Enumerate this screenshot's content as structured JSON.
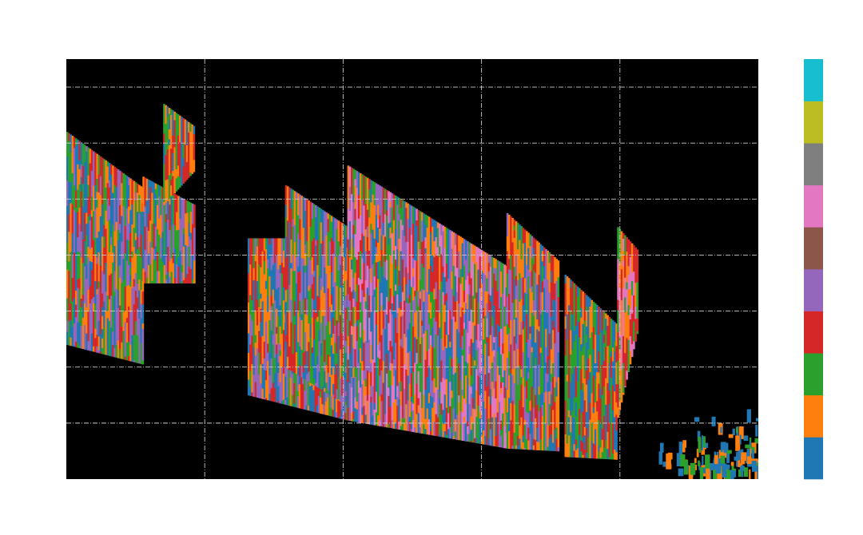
{
  "chart_data": {
    "type": "heatmap",
    "title": "",
    "xlabel": "",
    "ylabel": "",
    "background": "#000000",
    "grid": true,
    "grid_color": "#cccccc",
    "grid_style": "dash-dot",
    "x_gridlines": [
      1,
      2,
      3,
      4
    ],
    "y_gridlines": [
      1,
      2,
      3,
      4,
      5,
      6,
      7
    ],
    "xlim": [
      0,
      5
    ],
    "ylim": [
      0,
      7.5
    ],
    "colorbar": {
      "categories": 10,
      "colors": [
        "#1f77b4",
        "#ff7f0e",
        "#2ca02c",
        "#d62728",
        "#9467bd",
        "#8c564b",
        "#e377c2",
        "#7f7f7f",
        "#bcbd22",
        "#17becf"
      ]
    },
    "regions": [
      {
        "x_start": 0.0,
        "x_end": 0.55,
        "top_start": 6.2,
        "top_end": 5.2,
        "bottom_start": 2.4,
        "bottom_end": 2.05,
        "palette": [
          1,
          2,
          3,
          4,
          0
        ]
      },
      {
        "x_start": 0.55,
        "x_end": 0.92,
        "top_start": 5.4,
        "top_end": 4.9,
        "bottom_start": 3.5,
        "bottom_end": 3.5,
        "palette": [
          3,
          4,
          2,
          1,
          0
        ]
      },
      {
        "x_start": 0.7,
        "x_end": 0.92,
        "top_start": 6.7,
        "top_end": 6.3,
        "bottom_start": 4.9,
        "bottom_end": 5.5,
        "palette": [
          1,
          3,
          0,
          2
        ]
      },
      {
        "x_start": 1.31,
        "x_end": 2.03,
        "top_start": 4.3,
        "top_end": 4.3,
        "bottom_start": 1.5,
        "bottom_end": 1.05,
        "palette": [
          0,
          1,
          2,
          3,
          4
        ]
      },
      {
        "x_start": 1.58,
        "x_end": 2.03,
        "top_start": 5.25,
        "top_end": 4.5,
        "bottom_start": 2.0,
        "bottom_end": 1.3,
        "palette": [
          2,
          3,
          1,
          4,
          0
        ]
      },
      {
        "x_start": 2.03,
        "x_end": 3.18,
        "top_start": 5.6,
        "top_end": 3.8,
        "bottom_start": 1.05,
        "bottom_end": 0.55,
        "palette": [
          1,
          3,
          2,
          0,
          4,
          6
        ]
      },
      {
        "x_start": 3.18,
        "x_end": 3.55,
        "top_start": 4.75,
        "top_end": 3.9,
        "bottom_start": 0.55,
        "bottom_end": 0.5,
        "palette": [
          2,
          1,
          0,
          3,
          4
        ]
      },
      {
        "x_start": 3.6,
        "x_end": 3.98,
        "top_start": 3.65,
        "top_end": 2.75,
        "bottom_start": 0.4,
        "bottom_end": 0.35,
        "palette": [
          2,
          3,
          1,
          0
        ]
      },
      {
        "x_start": 3.98,
        "x_end": 4.12,
        "top_start": 4.5,
        "top_end": 4.1,
        "bottom_start": 1.1,
        "bottom_end": 2.6,
        "palette": [
          3,
          6,
          1,
          2
        ]
      }
    ],
    "scatter_tail": {
      "x_start": 4.25,
      "x_end": 5.0,
      "y_min": 0.15,
      "y_max": 1.3,
      "palette": [
        0,
        1,
        2,
        0
      ]
    }
  }
}
